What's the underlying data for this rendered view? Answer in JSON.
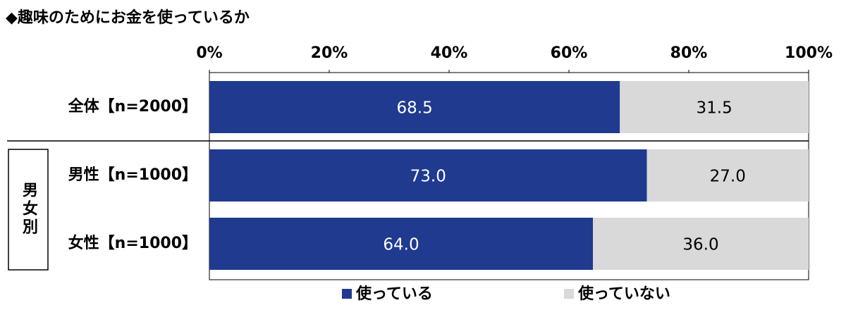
{
  "chart_data": {
    "type": "stacked-bar-horizontal",
    "title": "◆趣味のためにお金を使っているか",
    "group_label": "男女別",
    "categories": [
      "全体【n=2000】",
      "男性【n=1000】",
      "女性【n=1000】"
    ],
    "series": [
      {
        "name": "使っている",
        "color": "#1f3a8f",
        "values": [
          68.5,
          73,
          64
        ],
        "value_labels": [
          "68.5",
          "73.0",
          "64.0"
        ]
      },
      {
        "name": "使っていない",
        "color": "#d9d9d9",
        "values": [
          31.5,
          27,
          36
        ],
        "value_labels": [
          "31.5",
          "27.0",
          "36.0"
        ]
      }
    ],
    "xlim": [
      0,
      100
    ],
    "xticks": [
      {
        "value": 0,
        "label": "0%"
      },
      {
        "value": 20,
        "label": "20%"
      },
      {
        "value": 40,
        "label": "40%"
      },
      {
        "value": 60,
        "label": "60%"
      },
      {
        "value": 80,
        "label": "80%"
      },
      {
        "value": 100,
        "label": "100%"
      }
    ]
  }
}
